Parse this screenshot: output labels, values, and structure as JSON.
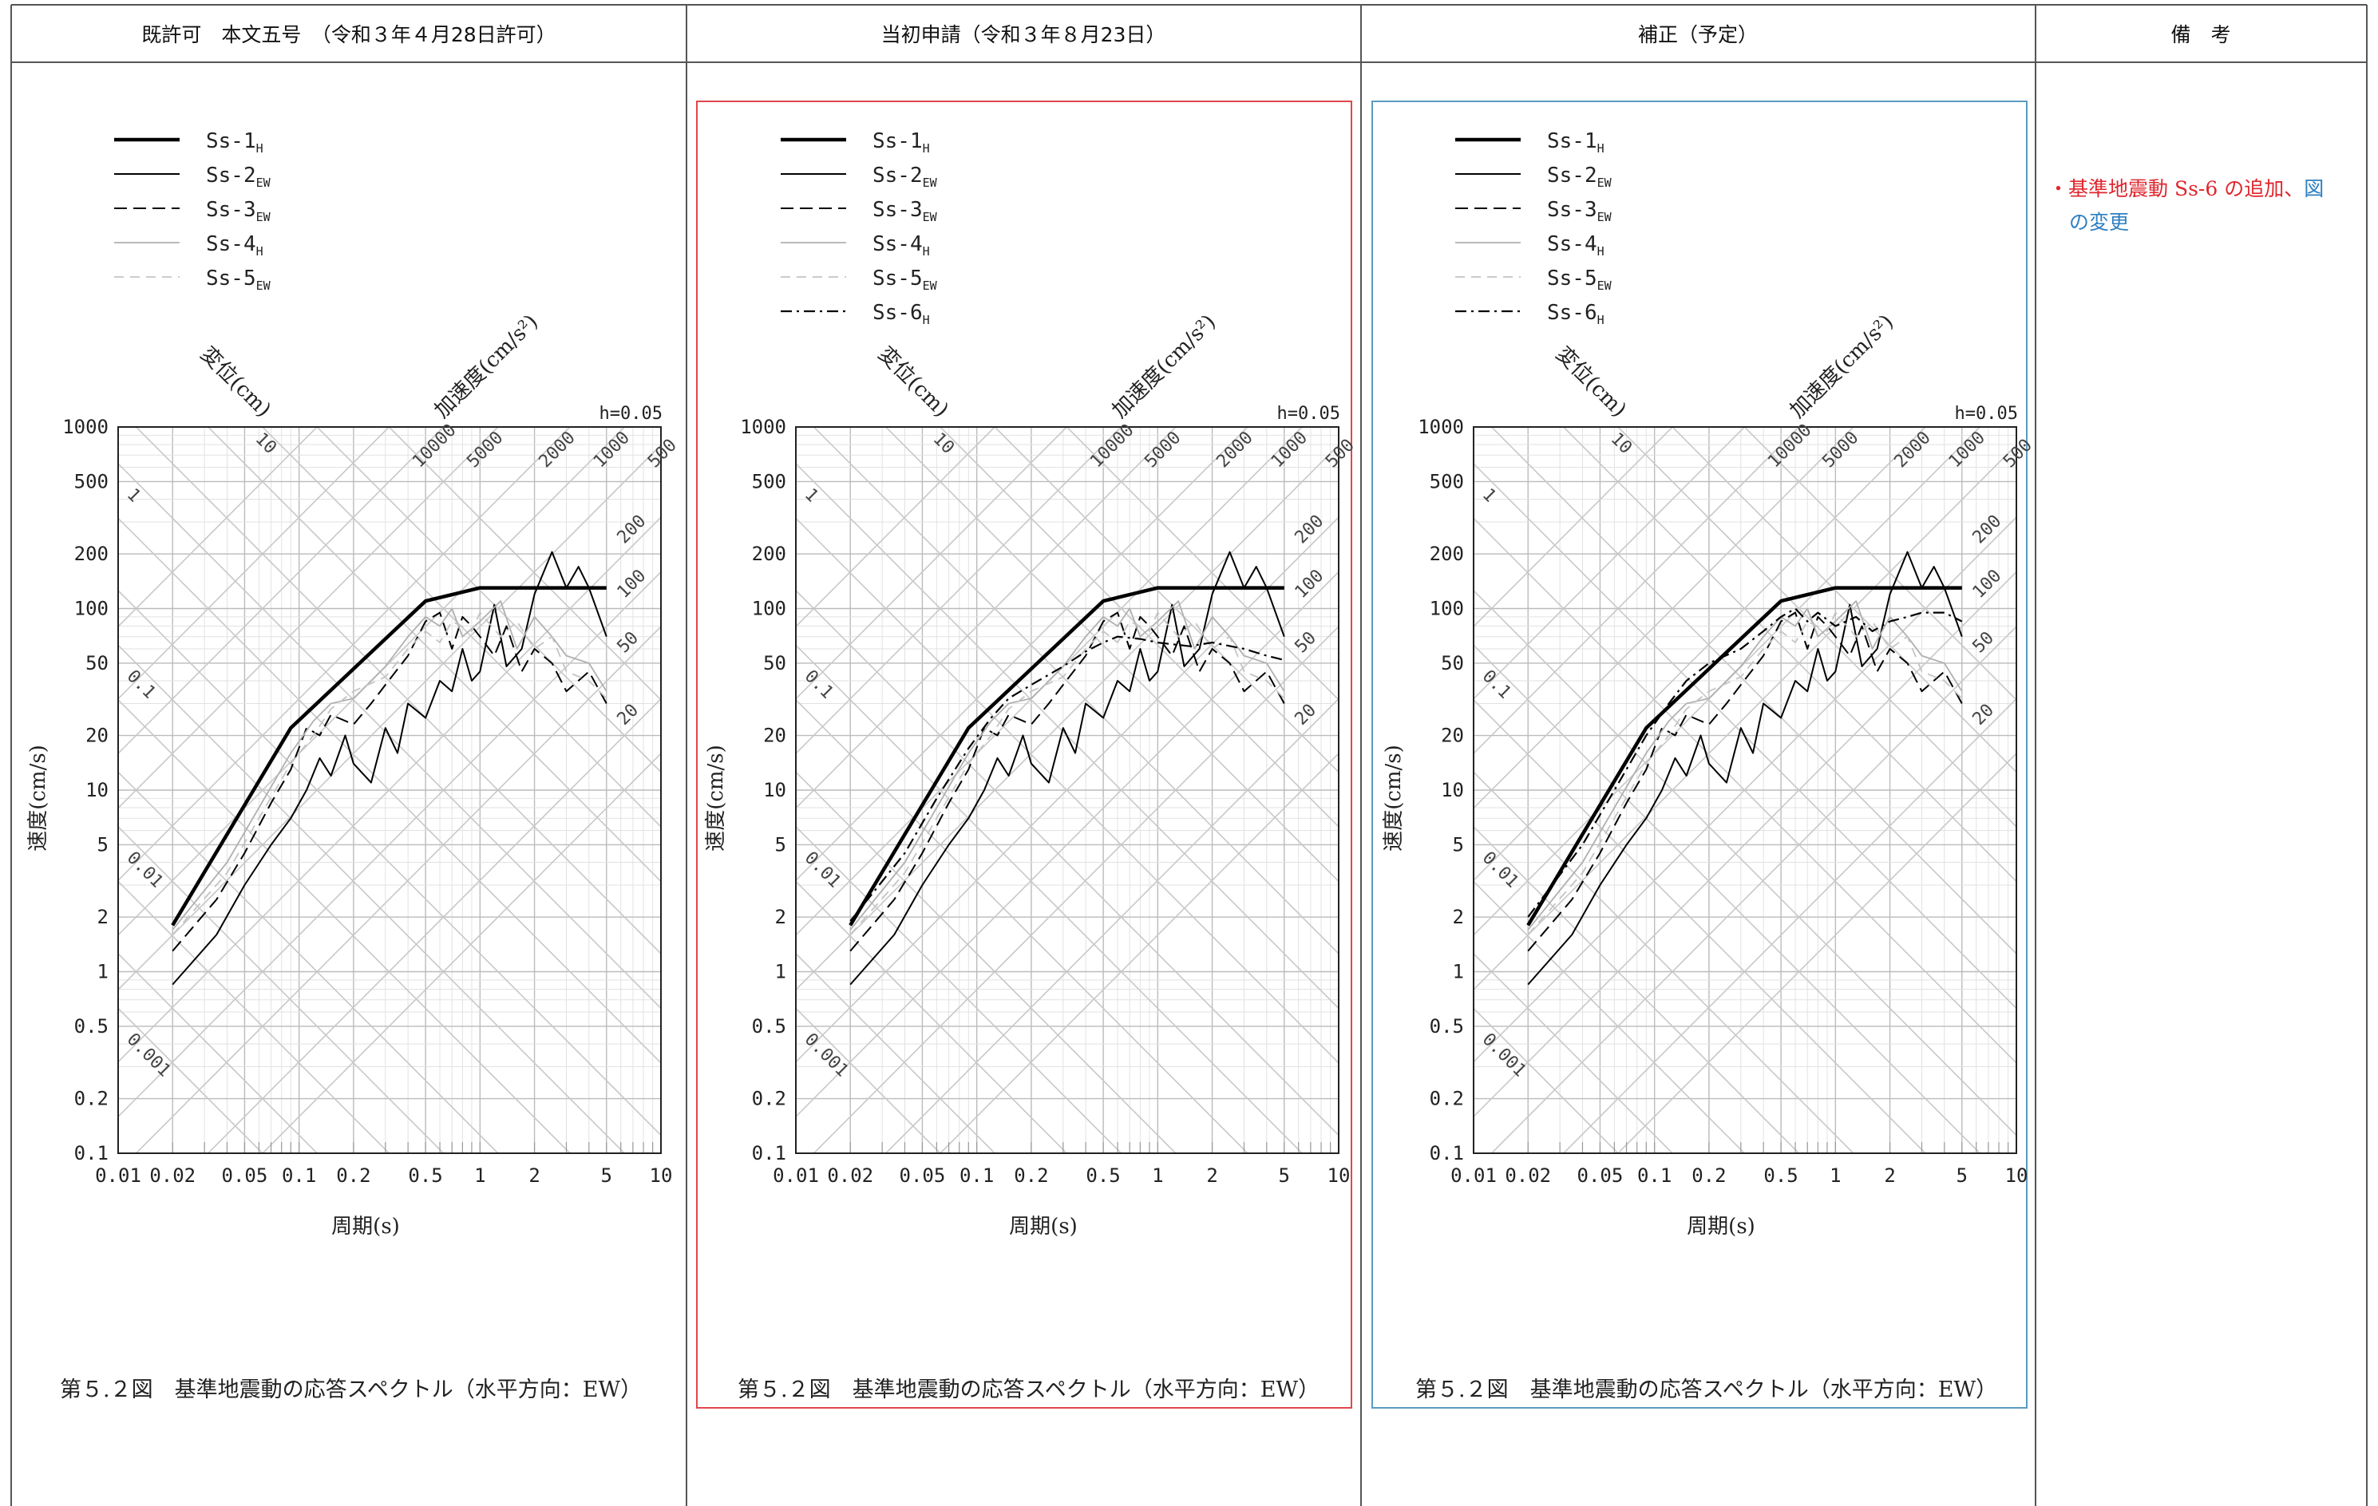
{
  "header": {
    "col1": "既許可　本文五号　（令和３年４月28日許可）",
    "col2": "当初申請（令和３年８月23日）",
    "col3": "補正（予定）",
    "col4": "備　考"
  },
  "remarks": {
    "bullet": "・",
    "part_red": "基準地震動 Ss-6 の追加、",
    "part_blue_1": "図",
    "part_blue_2": "の変更"
  },
  "colors": {
    "frame_red": "#e0474c",
    "frame_blue": "#5b9bbf",
    "remark_red": "#e0262d",
    "remark_blue": "#2f7fc1"
  },
  "chart_common": {
    "caption": "第５.２図　基準地震動の応答スペクトル（水平方向：EW）",
    "xlabel": "周期(s)",
    "ylabel": "速度(cm/s)",
    "disp_axis_label": "変位(cm)",
    "acc_axis_label": "加速度(cm/s²)",
    "damping": "h=0.05",
    "x_ticks": [
      "0.01",
      "0.02",
      "0.05",
      "0.1",
      "0.2",
      "0.5",
      "1",
      "2",
      "5",
      "10"
    ],
    "y_ticks": [
      "0.1",
      "0.2",
      "0.5",
      "1",
      "2",
      "5",
      "10",
      "20",
      "50",
      "100",
      "200",
      "500",
      "1000"
    ],
    "disp_ticks": [
      "0.001",
      "0.01",
      "0.1",
      "1",
      "10"
    ],
    "acc_ticks_top": [
      "10000",
      "5000",
      "2000",
      "1000",
      "500"
    ],
    "acc_ticks_right": [
      "200",
      "100",
      "50",
      "20"
    ]
  },
  "chart_data": [
    {
      "type": "line",
      "panel": "既許可",
      "xscale": "log",
      "yscale": "log",
      "xlim": [
        0.01,
        10
      ],
      "ylim": [
        0.1,
        1000
      ],
      "series": [
        {
          "name": "Ss-1H",
          "style": "thick",
          "x": [
            0.02,
            0.09,
            0.5,
            1.0,
            5.0
          ],
          "y": [
            1.8,
            22,
            110,
            130,
            130
          ]
        },
        {
          "name": "Ss-2EW",
          "style": "thin",
          "x": [
            0.02,
            0.035,
            0.05,
            0.07,
            0.09,
            0.11,
            0.13,
            0.15,
            0.18,
            0.2,
            0.25,
            0.3,
            0.35,
            0.4,
            0.5,
            0.6,
            0.7,
            0.8,
            0.9,
            1.0,
            1.2,
            1.4,
            1.7,
            2.0,
            2.5,
            3.0,
            3.5,
            4.0,
            5.0
          ],
          "y": [
            0.85,
            1.6,
            3.0,
            5.0,
            7.0,
            10,
            15,
            12,
            20,
            14,
            11,
            22,
            16,
            30,
            25,
            40,
            35,
            60,
            40,
            45,
            105,
            48,
            60,
            120,
            205,
            130,
            170,
            130,
            70
          ]
        },
        {
          "name": "Ss-3EW",
          "style": "dash",
          "x": [
            0.02,
            0.035,
            0.05,
            0.07,
            0.09,
            0.11,
            0.13,
            0.15,
            0.2,
            0.25,
            0.3,
            0.4,
            0.5,
            0.6,
            0.7,
            0.8,
            0.9,
            1.0,
            1.2,
            1.4,
            1.7,
            2.0,
            2.5,
            3.0,
            4.0,
            5.0
          ],
          "y": [
            1.3,
            2.5,
            4.5,
            8.5,
            13,
            22,
            20,
            26,
            23,
            30,
            38,
            55,
            85,
            95,
            60,
            90,
            80,
            70,
            55,
            80,
            45,
            60,
            50,
            35,
            45,
            30
          ]
        },
        {
          "name": "Ss-4H",
          "style": "gray",
          "x": [
            0.02,
            0.04,
            0.06,
            0.09,
            0.12,
            0.15,
            0.2,
            0.25,
            0.3,
            0.4,
            0.5,
            0.6,
            0.7,
            0.8,
            1.0,
            1.3,
            1.6,
            2.0,
            2.5,
            3.0,
            4.0,
            5.0
          ],
          "y": [
            1.7,
            4,
            8,
            16,
            24,
            30,
            32,
            40,
            48,
            70,
            90,
            80,
            100,
            70,
            85,
            110,
            60,
            90,
            70,
            55,
            50,
            35
          ]
        },
        {
          "name": "Ss-5EW",
          "style": "lightdash",
          "x": [
            0.02,
            0.04,
            0.06,
            0.09,
            0.12,
            0.15,
            0.2,
            0.3,
            0.4,
            0.5,
            0.6,
            0.7,
            0.9,
            1.0,
            1.3,
            1.6,
            2.0,
            2.5,
            3.0,
            4.0,
            5.0
          ],
          "y": [
            1.6,
            3.5,
            7,
            14,
            20,
            28,
            35,
            42,
            60,
            75,
            65,
            85,
            75,
            95,
            70,
            85,
            60,
            70,
            45,
            40,
            32
          ]
        }
      ]
    },
    {
      "type": "line",
      "panel": "当初申請",
      "xscale": "log",
      "yscale": "log",
      "xlim": [
        0.01,
        10
      ],
      "ylim": [
        0.1,
        1000
      ],
      "series": [
        {
          "name": "Ss-1H",
          "style": "thick",
          "x": [
            0.02,
            0.09,
            0.5,
            1.0,
            5.0
          ],
          "y": [
            1.8,
            22,
            110,
            130,
            130
          ]
        },
        {
          "name": "Ss-2EW",
          "style": "thin",
          "x": [
            0.02,
            0.035,
            0.05,
            0.07,
            0.09,
            0.11,
            0.13,
            0.15,
            0.18,
            0.2,
            0.25,
            0.3,
            0.35,
            0.4,
            0.5,
            0.6,
            0.7,
            0.8,
            0.9,
            1.0,
            1.2,
            1.4,
            1.7,
            2.0,
            2.5,
            3.0,
            3.5,
            4.0,
            5.0
          ],
          "y": [
            0.85,
            1.6,
            3.0,
            5.0,
            7.0,
            10,
            15,
            12,
            20,
            14,
            11,
            22,
            16,
            30,
            25,
            40,
            35,
            60,
            40,
            45,
            105,
            48,
            60,
            120,
            205,
            130,
            170,
            130,
            70
          ]
        },
        {
          "name": "Ss-3EW",
          "style": "dash",
          "x": [
            0.02,
            0.035,
            0.05,
            0.07,
            0.09,
            0.11,
            0.13,
            0.15,
            0.2,
            0.25,
            0.3,
            0.4,
            0.5,
            0.6,
            0.7,
            0.8,
            0.9,
            1.0,
            1.2,
            1.4,
            1.7,
            2.0,
            2.5,
            3.0,
            4.0,
            5.0
          ],
          "y": [
            1.3,
            2.5,
            4.5,
            8.5,
            13,
            22,
            20,
            26,
            23,
            30,
            38,
            55,
            85,
            95,
            60,
            90,
            80,
            70,
            55,
            80,
            45,
            60,
            50,
            35,
            45,
            30
          ]
        },
        {
          "name": "Ss-4H",
          "style": "gray",
          "x": [
            0.02,
            0.04,
            0.06,
            0.09,
            0.12,
            0.15,
            0.2,
            0.25,
            0.3,
            0.4,
            0.5,
            0.6,
            0.7,
            0.8,
            1.0,
            1.3,
            1.6,
            2.0,
            2.5,
            3.0,
            4.0,
            5.0
          ],
          "y": [
            1.7,
            4,
            8,
            16,
            24,
            30,
            32,
            40,
            48,
            70,
            90,
            80,
            100,
            70,
            85,
            110,
            60,
            90,
            70,
            55,
            50,
            35
          ]
        },
        {
          "name": "Ss-5EW",
          "style": "lightdash",
          "x": [
            0.02,
            0.04,
            0.06,
            0.09,
            0.12,
            0.15,
            0.2,
            0.3,
            0.4,
            0.5,
            0.6,
            0.7,
            0.9,
            1.0,
            1.3,
            1.6,
            2.0,
            2.5,
            3.0,
            4.0,
            5.0
          ],
          "y": [
            1.6,
            3.5,
            7,
            14,
            20,
            28,
            35,
            42,
            60,
            75,
            65,
            85,
            75,
            95,
            70,
            85,
            60,
            70,
            45,
            40,
            32
          ]
        },
        {
          "name": "Ss-6H",
          "style": "dashdot",
          "x": [
            0.02,
            0.04,
            0.06,
            0.09,
            0.12,
            0.15,
            0.2,
            0.3,
            0.4,
            0.5,
            0.6,
            0.8,
            1.0,
            1.5,
            2.0,
            3.0,
            4.0,
            5.0
          ],
          "y": [
            1.9,
            4.5,
            9,
            17,
            25,
            32,
            38,
            48,
            58,
            65,
            70,
            68,
            65,
            62,
            65,
            60,
            55,
            52
          ]
        }
      ]
    },
    {
      "type": "line",
      "panel": "補正",
      "xscale": "log",
      "yscale": "log",
      "xlim": [
        0.01,
        10
      ],
      "ylim": [
        0.1,
        1000
      ],
      "series": [
        {
          "name": "Ss-1H",
          "style": "thick",
          "x": [
            0.02,
            0.09,
            0.5,
            1.0,
            5.0
          ],
          "y": [
            1.8,
            22,
            110,
            130,
            130
          ]
        },
        {
          "name": "Ss-2EW",
          "style": "thin",
          "x": [
            0.02,
            0.035,
            0.05,
            0.07,
            0.09,
            0.11,
            0.13,
            0.15,
            0.18,
            0.2,
            0.25,
            0.3,
            0.35,
            0.4,
            0.5,
            0.6,
            0.7,
            0.8,
            0.9,
            1.0,
            1.2,
            1.4,
            1.7,
            2.0,
            2.5,
            3.0,
            3.5,
            4.0,
            5.0
          ],
          "y": [
            0.85,
            1.6,
            3.0,
            5.0,
            7.0,
            10,
            15,
            12,
            20,
            14,
            11,
            22,
            16,
            30,
            25,
            40,
            35,
            60,
            40,
            45,
            105,
            48,
            60,
            120,
            205,
            130,
            170,
            130,
            70
          ]
        },
        {
          "name": "Ss-3EW",
          "style": "dash",
          "x": [
            0.02,
            0.035,
            0.05,
            0.07,
            0.09,
            0.11,
            0.13,
            0.15,
            0.2,
            0.25,
            0.3,
            0.4,
            0.5,
            0.6,
            0.7,
            0.8,
            0.9,
            1.0,
            1.2,
            1.4,
            1.7,
            2.0,
            2.5,
            3.0,
            4.0,
            5.0
          ],
          "y": [
            1.3,
            2.5,
            4.5,
            8.5,
            13,
            22,
            20,
            26,
            23,
            30,
            38,
            55,
            85,
            95,
            60,
            90,
            80,
            70,
            55,
            80,
            45,
            60,
            50,
            35,
            45,
            30
          ]
        },
        {
          "name": "Ss-4H",
          "style": "gray",
          "x": [
            0.02,
            0.04,
            0.06,
            0.09,
            0.12,
            0.15,
            0.2,
            0.25,
            0.3,
            0.4,
            0.5,
            0.6,
            0.7,
            0.8,
            1.0,
            1.3,
            1.6,
            2.0,
            2.5,
            3.0,
            4.0,
            5.0
          ],
          "y": [
            1.7,
            4,
            8,
            16,
            24,
            30,
            32,
            40,
            48,
            70,
            90,
            80,
            100,
            70,
            85,
            110,
            60,
            90,
            70,
            55,
            50,
            35
          ]
        },
        {
          "name": "Ss-5EW",
          "style": "lightdash",
          "x": [
            0.02,
            0.04,
            0.06,
            0.09,
            0.12,
            0.15,
            0.2,
            0.3,
            0.4,
            0.5,
            0.6,
            0.7,
            0.9,
            1.0,
            1.3,
            1.6,
            2.0,
            2.5,
            3.0,
            4.0,
            5.0
          ],
          "y": [
            1.6,
            3.5,
            7,
            14,
            20,
            28,
            35,
            42,
            60,
            75,
            65,
            85,
            75,
            95,
            70,
            85,
            60,
            70,
            45,
            40,
            32
          ]
        },
        {
          "name": "Ss-6H",
          "style": "dashdot",
          "x": [
            0.02,
            0.04,
            0.06,
            0.09,
            0.12,
            0.15,
            0.2,
            0.3,
            0.4,
            0.5,
            0.6,
            0.7,
            0.8,
            1.0,
            1.3,
            1.6,
            2.0,
            2.5,
            3.0,
            4.0,
            5.0
          ],
          "y": [
            2.0,
            5,
            10,
            20,
            30,
            40,
            50,
            60,
            75,
            90,
            100,
            85,
            95,
            80,
            90,
            75,
            85,
            90,
            95,
            95,
            85
          ]
        }
      ]
    }
  ]
}
